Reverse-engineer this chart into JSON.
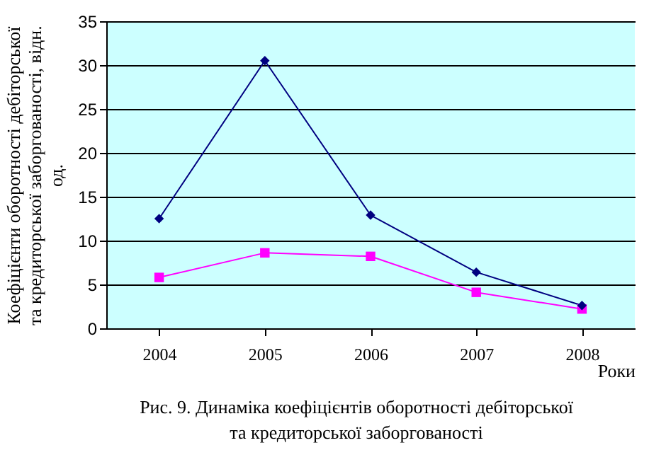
{
  "chart_data": {
    "type": "line",
    "ylabel": "Коефіцієнти оборотності дебіторської та кредиторської заборгованості, відн. од.",
    "xlabel": "Роки",
    "categories": [
      "2004",
      "2005",
      "2006",
      "2007",
      "2008"
    ],
    "series": [
      {
        "color": "#000080",
        "marker": "diamond",
        "values": [
          12.5,
          30.5,
          12.9,
          6.4,
          2.6
        ]
      },
      {
        "color": "#ff00ff",
        "marker": "square",
        "values": [
          5.8,
          8.6,
          8.2,
          4.1,
          2.2
        ]
      }
    ],
    "ylim": [
      0,
      35
    ],
    "yticks": [
      0,
      5,
      10,
      15,
      20,
      25,
      30,
      35
    ],
    "grid": "y",
    "annotations": [
      "Рис. 9. Динаміка коефіцієнтів оборотності дебіторської та кредиторської заборгованості"
    ]
  }
}
